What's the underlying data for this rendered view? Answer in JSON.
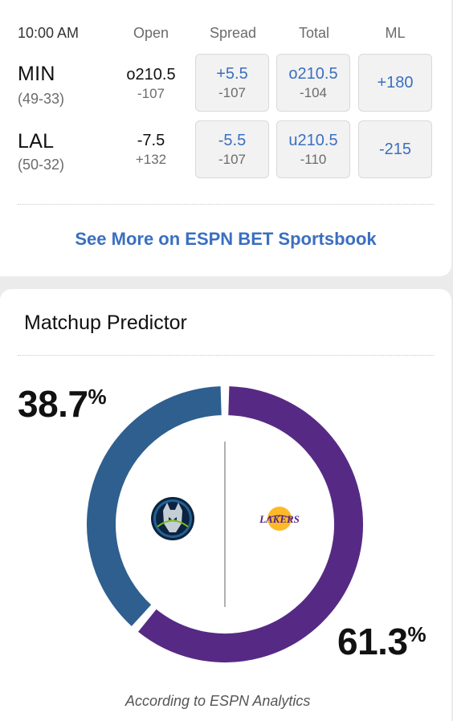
{
  "odds": {
    "headers": {
      "time": "10:00 AM",
      "open": "Open",
      "spread": "Spread",
      "total": "Total",
      "ml": "ML"
    },
    "teams": [
      {
        "abbr": "MIN",
        "record": "(49-33)",
        "open_main": "o210.5",
        "open_sub": "-107",
        "spread_main": "+5.5",
        "spread_sub": "-107",
        "total_main": "o210.5",
        "total_sub": "-104",
        "ml": "+180"
      },
      {
        "abbr": "LAL",
        "record": "(50-32)",
        "open_main": "-7.5",
        "open_sub": "+132",
        "spread_main": "-5.5",
        "spread_sub": "-107",
        "total_main": "u210.5",
        "total_sub": "-110",
        "ml": "-215"
      }
    ],
    "see_more": "See More on ESPN BET Sportsbook"
  },
  "predictor": {
    "title": "Matchup Predictor",
    "min_pct": "38.7",
    "lal_pct": "61.3",
    "pct_symbol": "%",
    "min_fraction": 0.387,
    "lal_fraction": 0.613,
    "source": "According to ESPN Analytics",
    "min_logo_icon": "timberwolves-logo-icon",
    "lal_logo_icon": "lakers-logo-icon",
    "lal_logo_text": "LAKERS"
  },
  "colors": {
    "min": "#2e5f8f",
    "lal": "#562a84",
    "link": "#3a6fc0"
  }
}
